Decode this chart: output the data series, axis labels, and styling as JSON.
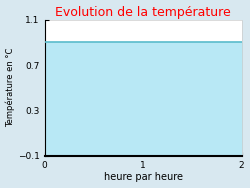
{
  "title": "Evolution de la température",
  "title_color": "#ff0000",
  "xlabel": "heure par heure",
  "ylabel": "Température en °C",
  "xlim": [
    0,
    2
  ],
  "ylim": [
    -0.1,
    1.1
  ],
  "xticks": [
    0,
    1,
    2
  ],
  "yticks": [
    -0.1,
    0.3,
    0.7,
    1.1
  ],
  "line_y": 0.9,
  "line_color": "#5bbccc",
  "fill_color": "#b8e8f5",
  "background_color": "#d8e8f0",
  "plot_bg_color": "#ffffff",
  "line_width": 1.2,
  "title_fontsize": 9,
  "label_fontsize": 6,
  "tick_fontsize": 6.5
}
